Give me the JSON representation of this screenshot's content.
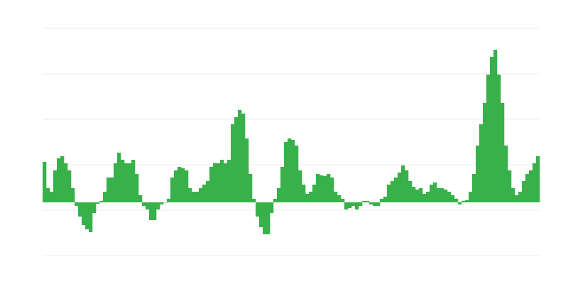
{
  "chart_data": {
    "type": "bar",
    "title": "",
    "xlabel": "",
    "ylabel": "",
    "ylim": [
      -75,
      245
    ],
    "gridlines": [
      245,
      181,
      117,
      53,
      -11,
      -75
    ],
    "grid": true,
    "bar_color": "#38b14a",
    "grid_color": "#eeeeee",
    "values": [
      57,
      20,
      15,
      45,
      62,
      65,
      55,
      45,
      20,
      -5,
      -20,
      -32,
      -38,
      -42,
      -15,
      -2,
      2,
      15,
      35,
      35,
      55,
      70,
      60,
      55,
      55,
      60,
      40,
      10,
      -5,
      -10,
      -25,
      -25,
      -10,
      -3,
      0,
      5,
      35,
      45,
      50,
      48,
      45,
      20,
      15,
      15,
      20,
      25,
      30,
      50,
      55,
      55,
      60,
      55,
      60,
      110,
      120,
      130,
      125,
      90,
      40,
      5,
      -20,
      -35,
      -45,
      -45,
      -15,
      5,
      20,
      50,
      85,
      90,
      88,
      80,
      45,
      25,
      12,
      15,
      25,
      40,
      38,
      37,
      40,
      35,
      15,
      10,
      5,
      -10,
      -8,
      -5,
      -10,
      -5,
      2,
      2,
      -3,
      -5,
      -5,
      5,
      8,
      25,
      30,
      35,
      42,
      52,
      45,
      30,
      22,
      18,
      20,
      12,
      15,
      25,
      28,
      20,
      20,
      18,
      15,
      10,
      5,
      -3,
      2,
      3,
      15,
      40,
      80,
      110,
      140,
      180,
      205,
      215,
      180,
      140,
      80,
      45,
      20,
      10,
      15,
      30,
      40,
      45,
      55,
      65
    ]
  }
}
